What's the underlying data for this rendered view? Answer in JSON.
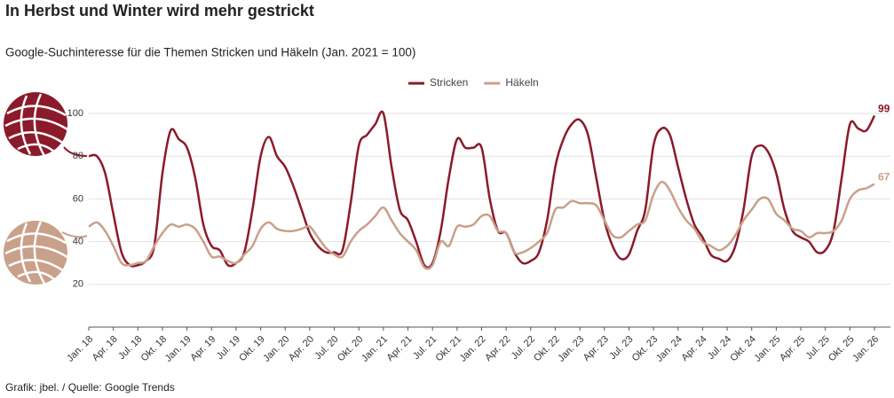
{
  "chart_data": {
    "type": "line",
    "title": "In Herbst und Winter wird mehr gestrickt",
    "subtitle": "Google-Suchinteresse für die Themen Stricken und Häkeln (Jan. 2021 = 100)",
    "source": "Grafik: jbel. / Quelle: Google Trends",
    "categories": [
      "Jan. 18",
      null,
      null,
      "Apr. 18",
      null,
      null,
      "Jul. 18",
      null,
      null,
      "Okt. 18",
      null,
      null,
      "Jan. 19",
      null,
      null,
      "Apr. 19",
      null,
      null,
      "Jul. 19",
      null,
      null,
      "Okt. 19",
      null,
      null,
      "Jan. 20",
      null,
      null,
      "Apr. 20",
      null,
      null,
      "Jul. 20",
      null,
      null,
      "Okt. 20",
      null,
      null,
      "Jan. 21",
      null,
      null,
      "Apr. 21",
      null,
      null,
      "Jul. 21",
      null,
      null,
      "Okt. 21",
      null,
      null,
      "Jan. 22",
      null,
      null,
      "Apr. 22",
      null,
      null,
      "Jul. 22",
      null,
      null,
      "Okt. 22",
      null,
      null,
      "Jan. 23",
      null,
      null,
      "Apr. 23",
      null,
      null,
      "Jul. 23",
      null,
      null,
      "Okt. 23",
      null,
      null,
      "Jan. 24",
      null,
      null,
      "Apr. 24",
      null,
      null,
      "Jul. 24",
      null,
      null,
      "Okt. 24",
      null,
      null,
      "Jan. 25",
      null,
      null,
      "Apr. 25",
      null,
      null,
      "Jul. 25",
      null,
      null,
      "Okt. 25",
      null,
      null,
      "Jan. 26"
    ],
    "series": [
      {
        "name": "Stricken",
        "color": "#8b1a2b",
        "values": [
          80,
          80,
          72,
          53,
          35,
          29,
          29,
          31,
          38,
          72,
          92,
          88,
          84,
          70,
          48,
          38,
          36,
          29,
          30,
          35,
          55,
          80,
          89,
          80,
          75,
          66,
          55,
          44,
          38,
          35,
          35,
          36,
          58,
          85,
          90,
          95,
          100,
          75,
          55,
          50,
          40,
          29,
          30,
          45,
          70,
          88,
          84,
          84,
          84,
          60,
          45,
          44,
          35,
          30,
          31,
          35,
          50,
          75,
          88,
          95,
          97,
          90,
          70,
          50,
          38,
          32,
          34,
          45,
          55,
          85,
          93,
          90,
          75,
          60,
          48,
          42,
          34,
          32,
          31,
          38,
          55,
          80,
          85,
          82,
          72,
          55,
          45,
          42,
          40,
          35,
          36,
          45,
          70,
          95,
          93,
          92,
          99
        ]
      },
      {
        "name": "Häkeln",
        "color": "#c9a08a",
        "values": [
          47,
          49,
          45,
          38,
          30,
          29,
          30,
          31,
          38,
          44,
          48,
          47,
          48,
          46,
          40,
          33,
          33,
          31,
          30,
          34,
          38,
          46,
          49,
          46,
          45,
          45,
          46,
          47,
          42,
          37,
          34,
          33,
          40,
          45,
          48,
          52,
          56,
          50,
          44,
          40,
          36,
          28,
          29,
          40,
          38,
          47,
          47,
          48,
          52,
          52,
          45,
          44,
          35,
          35,
          37,
          40,
          44,
          55,
          56,
          59,
          58,
          58,
          57,
          50,
          43,
          42,
          45,
          48,
          50,
          62,
          68,
          64,
          56,
          50,
          46,
          40,
          38,
          36,
          38,
          43,
          50,
          55,
          60,
          60,
          53,
          50,
          46,
          45,
          42,
          44,
          44,
          45,
          50,
          60,
          64,
          65,
          67
        ]
      }
    ],
    "ylim": [
      0,
      105
    ],
    "yticks": [
      20,
      40,
      60,
      80,
      100
    ],
    "grid": true,
    "legend": "top"
  }
}
